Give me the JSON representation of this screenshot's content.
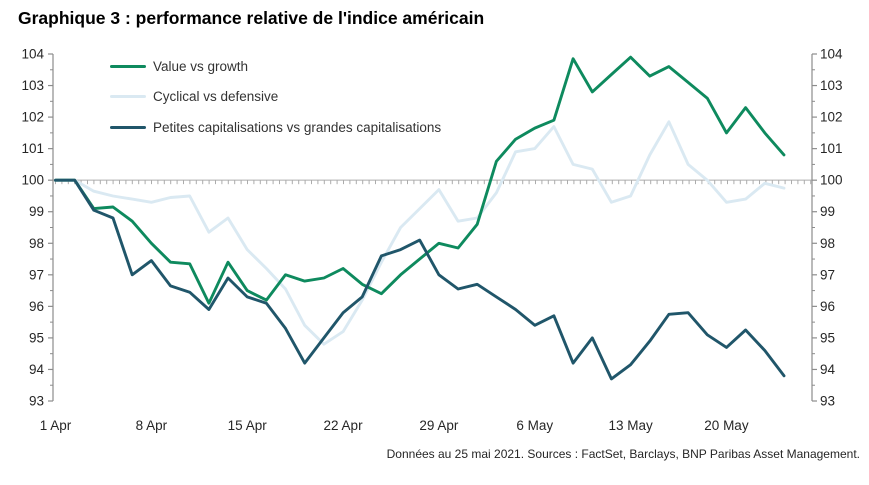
{
  "title": "Graphique 3 : performance relative de l'indice américain",
  "footer": "Données au 25 mai 2021. Sources : FactSet, Barclays, BNP Paribas Asset Management.",
  "colors": {
    "value_vs_growth": "#0E8A5E",
    "cyclical_vs_defensive": "#DAE9F2",
    "petites_vs_grandes": "#20566A",
    "reference_line": "#ACACAC",
    "axis": "#8C8C8C",
    "tick_label": "#262626"
  },
  "chart_data": {
    "type": "line",
    "title": "Graphique 3 : performance relative de l'indice américain",
    "xlabel": "",
    "ylabel": "",
    "ylim": [
      93,
      104
    ],
    "y_ticks": [
      104,
      103,
      102,
      101,
      100,
      99,
      98,
      97,
      96,
      95,
      94,
      93
    ],
    "grid": "reference line at 100 only, with daily minor ticks below it",
    "legend_position": "top-left inside plot",
    "dual_axis": true,
    "x": [
      "1 Apr",
      "2 Apr",
      "5 Apr",
      "6 Apr",
      "7 Apr",
      "8 Apr",
      "9 Apr",
      "12 Apr",
      "13 Apr",
      "14 Apr",
      "15 Apr",
      "16 Apr",
      "19 Apr",
      "20 Apr",
      "21 Apr",
      "22 Apr",
      "23 Apr",
      "26 Apr",
      "27 Apr",
      "28 Apr",
      "29 Apr",
      "30 Apr",
      "3 May",
      "4 May",
      "5 May",
      "6 May",
      "7 May",
      "10 May",
      "11 May",
      "12 May",
      "13 May",
      "14 May",
      "17 May",
      "18 May",
      "19 May",
      "20 May",
      "21 May",
      "24 May",
      "25 May"
    ],
    "x_tick_labels": [
      {
        "index": 0,
        "label": "1 Apr"
      },
      {
        "index": 5,
        "label": "8 Apr"
      },
      {
        "index": 10,
        "label": "15 Apr"
      },
      {
        "index": 15,
        "label": "22 Apr"
      },
      {
        "index": 20,
        "label": "29 Apr"
      },
      {
        "index": 25,
        "label": "6 May"
      },
      {
        "index": 30,
        "label": "13 May"
      },
      {
        "index": 35,
        "label": "20 May"
      }
    ],
    "series": [
      {
        "name": "Value vs growth",
        "color_key": "value_vs_growth",
        "values": [
          100,
          100,
          99.1,
          99.15,
          98.7,
          98.0,
          97.4,
          97.35,
          96.1,
          97.4,
          96.5,
          96.2,
          97.0,
          96.8,
          96.9,
          97.2,
          96.7,
          96.4,
          97.0,
          97.5,
          98.0,
          97.85,
          98.6,
          100.6,
          101.3,
          101.65,
          101.9,
          103.85,
          102.8,
          103.35,
          103.9,
          103.3,
          103.6,
          103.1,
          102.6,
          101.5,
          102.3,
          101.5,
          100.8
        ]
      },
      {
        "name": "Cyclical vs defensive",
        "color_key": "cyclical_vs_defensive",
        "values": [
          100,
          100,
          99.65,
          99.5,
          99.4,
          99.3,
          99.45,
          99.5,
          98.35,
          98.8,
          97.8,
          97.2,
          96.55,
          95.4,
          94.8,
          95.2,
          96.2,
          97.4,
          98.5,
          99.1,
          99.7,
          98.7,
          98.8,
          99.6,
          100.9,
          101.0,
          101.7,
          100.5,
          100.35,
          99.3,
          99.5,
          100.8,
          101.85,
          100.5,
          100.0,
          99.3,
          99.4,
          99.9,
          99.75
        ]
      },
      {
        "name": "Petites capitalisations vs grandes capitalisations",
        "color_key": "petites_vs_grandes",
        "values": [
          100,
          100,
          99.05,
          98.8,
          97.0,
          97.45,
          96.65,
          96.45,
          95.9,
          96.9,
          96.3,
          96.1,
          95.3,
          94.2,
          95.0,
          95.8,
          96.3,
          97.6,
          97.8,
          98.1,
          97.0,
          96.55,
          96.7,
          96.3,
          95.9,
          95.4,
          95.7,
          94.2,
          95.0,
          93.7,
          94.15,
          94.9,
          95.75,
          95.8,
          95.1,
          94.7,
          95.25,
          94.6,
          93.8
        ]
      }
    ]
  }
}
